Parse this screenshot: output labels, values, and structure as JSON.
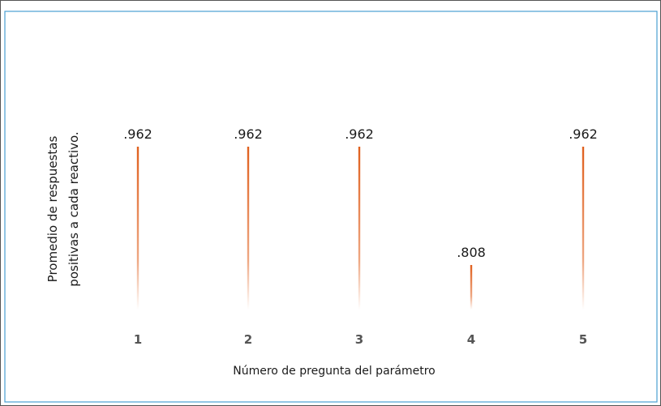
{
  "chart_data": {
    "type": "bar",
    "categories": [
      "1",
      "2",
      "3",
      "4",
      "5"
    ],
    "values": [
      0.962,
      0.962,
      0.962,
      0.808,
      0.962
    ],
    "data_labels": [
      ".962",
      ".962",
      ".962",
      ".808",
      ".962"
    ],
    "xlabel": "Número de pregunta del parámetro",
    "ylabel_line1": "Promedio de respuestas",
    "ylabel_line2": "positivas a cada reactivo.",
    "ylim": [
      0.75,
      1.0
    ],
    "grid": false,
    "bar_color": "#e0601e",
    "border_color": "#4a9fd1"
  }
}
